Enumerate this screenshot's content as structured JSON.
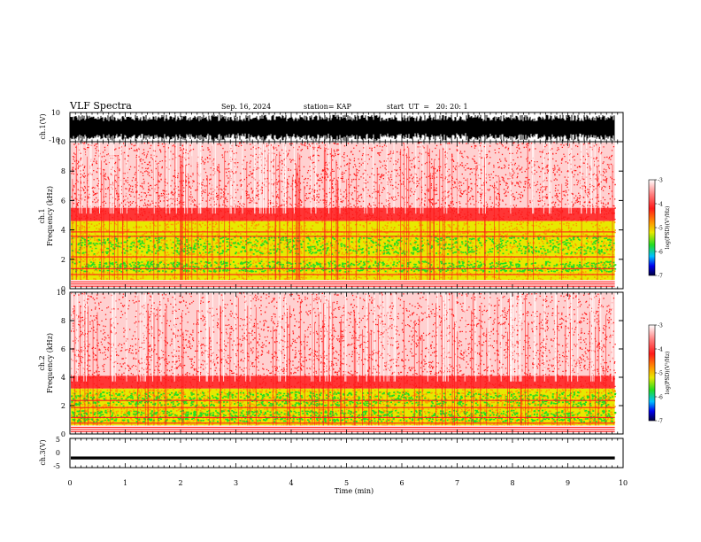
{
  "header": {
    "title": "VLF Spectra",
    "date": "Sep. 16, 2024",
    "station": "station= KAP",
    "start": "start  UT  =   20: 20: 1"
  },
  "colors": {
    "red": "#ff1a1a",
    "orange": "#ff9900",
    "yellow": "#e8e800",
    "green": "#22dd22",
    "blue": "#0000ee",
    "black": "#000000"
  },
  "chart_data": [
    {
      "type": "line",
      "name": "ch1-waveform",
      "ylabel": "ch.1(V)",
      "ylim": [
        -10,
        10
      ],
      "yticks": [
        "10",
        "-10"
      ],
      "xlim": [
        0,
        10
      ],
      "description_level": "dense oscillating signal spanning roughly -8 to 8 V"
    },
    {
      "type": "heatmap",
      "name": "ch1-spectrogram",
      "ylabel": "ch.1\nFrequency (kHz)",
      "ylabel_line1": "ch.1",
      "ylabel_line2": "Frequency (kHz)",
      "ylim": [
        0,
        10
      ],
      "yticks": [
        0,
        2,
        4,
        6,
        8,
        10
      ],
      "xlim": [
        0,
        9.85
      ],
      "colorbar": {
        "label": "log(PSD)(V²/Hz)",
        "range": [
          -7,
          -3
        ],
        "ticks": [
          "-3",
          "-4",
          "-5",
          "-6",
          "-7"
        ]
      }
    },
    {
      "type": "heatmap",
      "name": "ch2-spectrogram",
      "ylabel_line1": "ch.2",
      "ylabel_line2": "Frequency (kHz)",
      "ylim": [
        0,
        10
      ],
      "yticks": [
        0,
        2,
        4,
        6,
        8,
        10
      ],
      "xlim": [
        0,
        9.85
      ],
      "colorbar": {
        "label": "log(PSD)(V²/Hz)",
        "range": [
          -7,
          -3
        ],
        "ticks": [
          "-3",
          "-4",
          "-5",
          "-6",
          "-7"
        ]
      }
    },
    {
      "type": "line",
      "name": "ch3-waveform",
      "ylabel": "ch.3(V)",
      "ylim": [
        -5,
        5
      ],
      "yticks": [
        "5",
        "0",
        "-5"
      ],
      "xlim": [
        0,
        9.85
      ],
      "level": -1.7
    }
  ],
  "x_axis": {
    "label": "Time (min)",
    "ticks": [
      "0",
      "1",
      "2",
      "3",
      "4",
      "5",
      "6",
      "7",
      "8",
      "9",
      "10"
    ],
    "range": [
      0,
      10
    ]
  }
}
